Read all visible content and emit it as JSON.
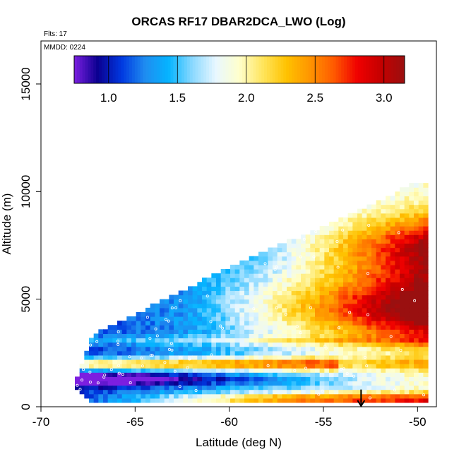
{
  "chart_data": {
    "type": "heatmap",
    "title": "ORCAS RF17 DBAR2DCA_LWO (Log)",
    "annotations": [
      "Flts: 17",
      "MMDD: 0224"
    ],
    "xlabel": "Latitude (deg N)",
    "ylabel": "Altitude (m)",
    "xlim": [
      -70,
      -49
    ],
    "ylim": [
      0,
      17000
    ],
    "x_ticks": [
      -70,
      -65,
      -60,
      -55,
      -50
    ],
    "y_ticks": [
      0,
      5000,
      10000,
      15000
    ],
    "colorbar": {
      "range": [
        0.75,
        3.15
      ],
      "ticks": [
        1.0,
        1.5,
        2.0,
        2.5,
        3.0
      ],
      "tick_labels": [
        "1.0",
        "1.5",
        "2.0",
        "2.5",
        "3.0"
      ],
      "colors": [
        "#7c1fe0",
        "#0a0090",
        "#0038e0",
        "#1f8cf0",
        "#05b4ff",
        "#8ad9ff",
        "#e8f7ff",
        "#ffffcc",
        "#ffe55c",
        "#ffc200",
        "#ff9400",
        "#ff5a00",
        "#f00000",
        "#c40000",
        "#9a1010"
      ]
    },
    "grid": {
      "lat_start": -68.2,
      "lat_end": -49.6,
      "lat_step": 0.25,
      "alt_step": 200,
      "top_edge": [
        {
          "lat": -68.2,
          "alt": 1000
        },
        {
          "lat": -67.3,
          "alt": 3200
        },
        {
          "lat": -60,
          "alt": 6400
        },
        {
          "lat": -55,
          "alt": 8300
        },
        {
          "lat": -51.2,
          "alt": 9800
        },
        {
          "lat": -50.3,
          "alt": 10300
        },
        {
          "lat": -49.6,
          "alt": 10300
        }
      ],
      "bottom_edge": [
        {
          "lat": -68.2,
          "alt": 1000
        },
        {
          "lat": -67.5,
          "alt": 400
        },
        {
          "lat": -49.6,
          "alt": 200
        }
      ]
    },
    "field_description": "low values (~1.0) at low latitudes and low altitudes, rising to ~3.0 near -51 deg N between 3000 and 6500 m",
    "marker": {
      "lat": -53,
      "alt_from": 800,
      "alt_to": 0,
      "type": "arrow-down"
    }
  }
}
